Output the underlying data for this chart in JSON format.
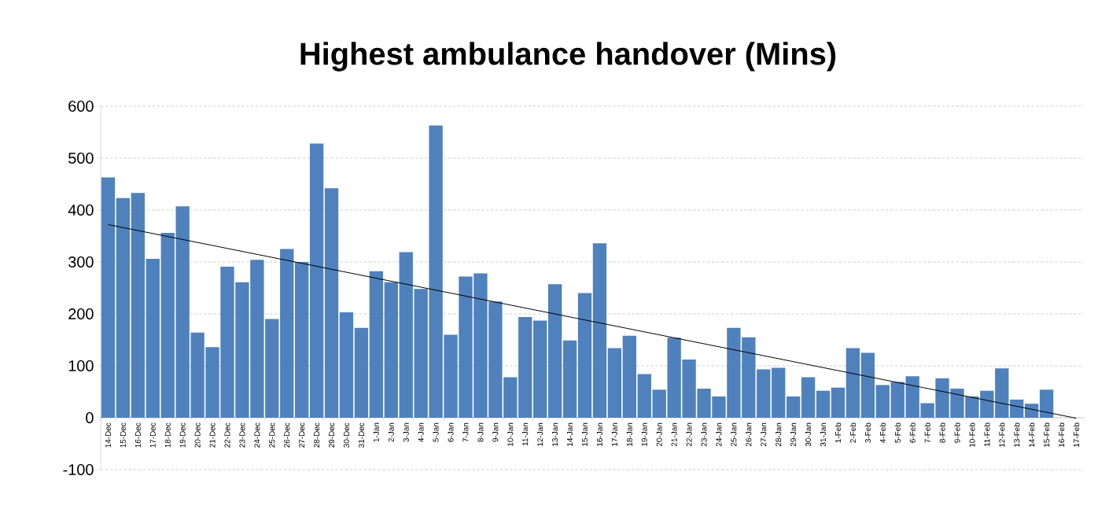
{
  "chart_data": {
    "type": "bar",
    "title": "Highest ambulance handover (Mins)",
    "categories": [
      "14-Dec",
      "15-Dec",
      "16-Dec",
      "17-Dec",
      "18-Dec",
      "19-Dec",
      "20-Dec",
      "21-Dec",
      "22-Dec",
      "23-Dec",
      "24-Dec",
      "25-Dec",
      "26-Dec",
      "27-Dec",
      "28-Dec",
      "29-Dec",
      "30-Dec",
      "31-Dec",
      "1-Jan",
      "2-Jan",
      "3-Jan",
      "4-Jan",
      "5-Jan",
      "6-Jan",
      "7-Jan",
      "8-Jan",
      "9-Jan",
      "10-Jan",
      "11-Jan",
      "12-Jan",
      "13-Jan",
      "14-Jan",
      "15-Jan",
      "16-Jan",
      "17-Jan",
      "18-Jan",
      "19-Jan",
      "20-Jan",
      "21-Jan",
      "22-Jan",
      "23-Jan",
      "24-Jan",
      "25-Jan",
      "26-Jan",
      "27-Jan",
      "28-Jan",
      "29-Jan",
      "30-Jan",
      "31-Jan",
      "1-Feb",
      "2-Feb",
      "3-Feb",
      "4-Feb",
      "5-Feb",
      "6-Feb",
      "7-Feb",
      "8-Feb",
      "9-Feb",
      "10-Feb",
      "11-Feb",
      "12-Feb",
      "13-Feb",
      "14-Feb",
      "15-Feb",
      "16-Feb",
      "17-Feb"
    ],
    "series": [
      {
        "color": "#4f81bd",
        "values": [
          463,
          423,
          433,
          306,
          356,
          407,
          164,
          136,
          291,
          261,
          304,
          190,
          325,
          300,
          528,
          442,
          203,
          173,
          282,
          261,
          319,
          248,
          563,
          160,
          272,
          278,
          224,
          78,
          194,
          187,
          257,
          149,
          240,
          336,
          134,
          158,
          84,
          54,
          154,
          112,
          56,
          41,
          173,
          155,
          93,
          96,
          41,
          78,
          52,
          58,
          134,
          125,
          63,
          69,
          80,
          28,
          76,
          56,
          41,
          52,
          95,
          35,
          27,
          54,
          null,
          null
        ]
      },
      {
        "type": "line",
        "color": "#000000",
        "x": [
          "14-Dec",
          "17-Feb"
        ],
        "values": [
          372,
          -1
        ]
      }
    ],
    "ylim": [
      -100,
      600
    ],
    "yticks": [
      -100,
      0,
      100,
      200,
      300,
      400,
      500,
      600
    ],
    "grid": "y"
  }
}
